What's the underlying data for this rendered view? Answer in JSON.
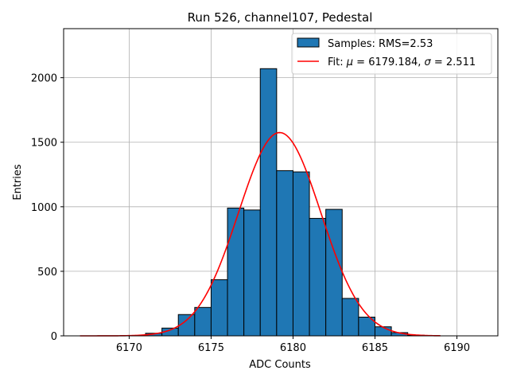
{
  "chart_data": {
    "type": "bar",
    "title": "Run 526, channel107, Pedestal",
    "xlabel": "ADC Counts",
    "ylabel": "Entries",
    "xlim": [
      6166,
      6192.5
    ],
    "ylim": [
      0,
      2380
    ],
    "xticks": [
      6170,
      6175,
      6180,
      6185,
      6190
    ],
    "yticks": [
      0,
      500,
      1000,
      1500,
      2000
    ],
    "grid": true,
    "legend_position": "top-right",
    "histogram": {
      "name": "Samples: RMS=2.53",
      "color": "#1f77b4",
      "bin_width": 1,
      "bins": [
        {
          "x": 6171,
          "count": 20
        },
        {
          "x": 6172,
          "count": 60
        },
        {
          "x": 6173,
          "count": 165
        },
        {
          "x": 6174,
          "count": 220
        },
        {
          "x": 6175,
          "count": 435
        },
        {
          "x": 6176,
          "count": 990
        },
        {
          "x": 6177,
          "count": 975
        },
        {
          "x": 6178,
          "count": 2070
        },
        {
          "x": 6179,
          "count": 1280
        },
        {
          "x": 6180,
          "count": 1270
        },
        {
          "x": 6181,
          "count": 910
        },
        {
          "x": 6182,
          "count": 980
        },
        {
          "x": 6183,
          "count": 290
        },
        {
          "x": 6184,
          "count": 145
        },
        {
          "x": 6185,
          "count": 70
        },
        {
          "x": 6186,
          "count": 25
        },
        {
          "x": 6187,
          "count": 5
        }
      ]
    },
    "fit": {
      "name_prefix": "Fit: ",
      "mu_symbol": "μ",
      "mu_text": " = 6179.184, ",
      "sigma_symbol": "σ",
      "sigma_text": " = 2.511",
      "color": "#ff0000",
      "mu": 6179.184,
      "sigma": 2.511,
      "amplitude": 1575,
      "x_range": [
        6167,
        6189
      ]
    }
  }
}
